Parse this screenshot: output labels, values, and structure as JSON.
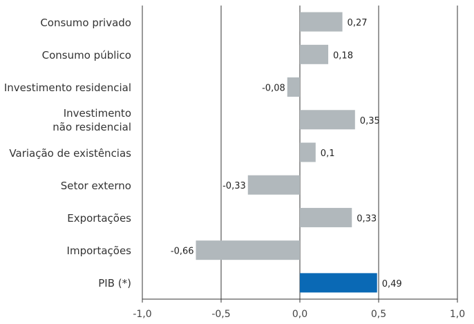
{
  "chart_data": {
    "type": "bar",
    "orientation": "horizontal",
    "categories": [
      "Consumo privado",
      "Consumo público",
      "Investimento residencial",
      "Investimento\nnão residencial",
      "Variação de existências",
      "Setor externo",
      "Exportações",
      "Importações",
      "PIB (*)"
    ],
    "values": [
      0.27,
      0.18,
      -0.08,
      0.35,
      0.1,
      -0.33,
      0.33,
      -0.66,
      0.49
    ],
    "value_labels": [
      "0,27",
      "0,18",
      "-0,08",
      "0,35",
      "0,1",
      "-0,33",
      "0,33",
      "-0,66",
      "0,49"
    ],
    "colors": [
      "#b1b8bc",
      "#b1b8bc",
      "#b1b8bc",
      "#b1b8bc",
      "#b1b8bc",
      "#b1b8bc",
      "#b1b8bc",
      "#b1b8bc",
      "#0a69b5"
    ],
    "xlim": [
      -1.0,
      1.0
    ],
    "xticks": [
      {
        "value": -1.0,
        "label": "-1,0"
      },
      {
        "value": -0.5,
        "label": "-0,5"
      },
      {
        "value": 0.0,
        "label": "0,0"
      },
      {
        "value": 0.5,
        "label": "0,5"
      },
      {
        "value": 1.0,
        "label": "1,0"
      }
    ],
    "grid": true
  }
}
